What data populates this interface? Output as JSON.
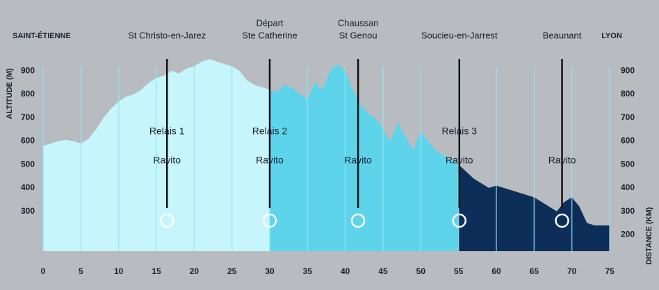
{
  "chart_data": {
    "type": "area",
    "start_label": "SAINT-ÉTIENNE",
    "end_label": "LYON",
    "y_label": "ALTITUDE (M)",
    "x_label": "DISTANCE (KM)",
    "xlim": [
      0,
      75
    ],
    "xticks": [
      0,
      5,
      10,
      15,
      20,
      25,
      30,
      35,
      40,
      45,
      50,
      55,
      60,
      65,
      70,
      75
    ],
    "ylim": [
      130,
      960
    ],
    "yticks": [
      300,
      400,
      500,
      600,
      700,
      800,
      900
    ],
    "y2lim": [
      130,
      960
    ],
    "y2ticks": [
      200,
      300,
      400,
      500,
      600,
      700,
      800,
      900
    ],
    "grid": true,
    "series": [
      {
        "color": "#c6f6fb",
        "x": [
          0,
          1,
          2,
          3,
          4,
          5,
          6,
          7,
          8,
          9,
          10,
          11,
          12,
          13,
          14,
          15,
          16,
          17,
          18,
          19,
          20,
          21,
          22,
          23,
          24,
          25,
          26,
          27,
          28,
          29,
          30
        ],
        "values": [
          580,
          590,
          600,
          605,
          600,
          590,
          610,
          650,
          700,
          740,
          770,
          790,
          800,
          820,
          850,
          870,
          880,
          900,
          890,
          910,
          920,
          940,
          950,
          940,
          930,
          920,
          900,
          860,
          840,
          830,
          820
        ]
      },
      {
        "color": "#5ed4ea",
        "x": [
          30,
          31,
          32,
          33,
          34,
          35,
          36,
          37,
          38,
          39,
          40,
          41,
          42,
          43,
          44,
          45,
          46,
          47,
          48,
          49,
          50,
          51,
          52,
          53,
          54,
          55
        ],
        "values": [
          820,
          810,
          840,
          830,
          800,
          780,
          850,
          820,
          900,
          930,
          900,
          820,
          760,
          720,
          700,
          650,
          600,
          680,
          620,
          560,
          640,
          600,
          560,
          540,
          520,
          500
        ]
      },
      {
        "color": "#0c2e58",
        "x": [
          55,
          56,
          57,
          58,
          59,
          60,
          61,
          62,
          63,
          64,
          65,
          66,
          67,
          68,
          69,
          70,
          71,
          72,
          73,
          74,
          75
        ],
        "values": [
          500,
          470,
          440,
          420,
          400,
          410,
          400,
          390,
          380,
          370,
          360,
          340,
          320,
          300,
          340,
          360,
          320,
          250,
          240,
          240,
          240
        ]
      }
    ],
    "waypoints": [
      {
        "km": 16.4,
        "label": [
          "St Christo-en-Jarez"
        ],
        "notes": [
          "Relais 1",
          "Ravito"
        ]
      },
      {
        "km": 30,
        "label": [
          "Départ",
          "Ste Catherine"
        ],
        "notes": [
          "Relais 2",
          "Ravito"
        ]
      },
      {
        "km": 41.7,
        "label": [
          "Chaussan",
          "St Genou"
        ],
        "notes": [
          "Ravito"
        ]
      },
      {
        "km": 55.1,
        "label": [
          "Soucieu-en-Jarrest"
        ],
        "notes": [
          "Relais 3",
          "Ravito"
        ]
      },
      {
        "km": 68.7,
        "label": [
          "Beaunant"
        ],
        "notes": [
          "Ravito"
        ]
      }
    ]
  }
}
